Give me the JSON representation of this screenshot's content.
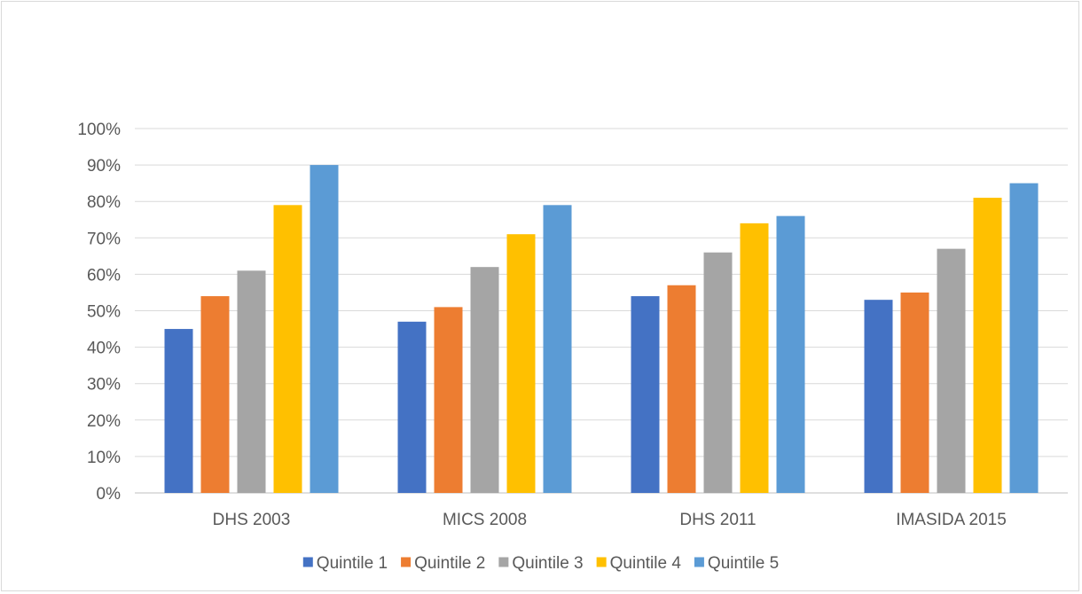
{
  "chart_data": {
    "type": "bar",
    "title": "",
    "xlabel": "",
    "ylabel": "",
    "categories": [
      "DHS 2003",
      "MICS 2008",
      "DHS 2011",
      "IMASIDA 2015"
    ],
    "series": [
      {
        "name": "Quintile 1",
        "color": "#4472c4",
        "values": [
          45,
          47,
          54,
          53
        ]
      },
      {
        "name": "Quintile 2",
        "color": "#ed7d31",
        "values": [
          54,
          51,
          57,
          55
        ]
      },
      {
        "name": "Quintile 3",
        "color": "#a5a5a5",
        "values": [
          61,
          62,
          66,
          67
        ]
      },
      {
        "name": "Quintile 4",
        "color": "#ffc000",
        "values": [
          79,
          71,
          74,
          81
        ]
      },
      {
        "name": "Quintile 5",
        "color": "#5b9bd5",
        "values": [
          90,
          79,
          76,
          85
        ]
      }
    ],
    "ylim": [
      0,
      100
    ],
    "yticks": [
      "0%",
      "10%",
      "20%",
      "30%",
      "40%",
      "50%",
      "60%",
      "70%",
      "80%",
      "90%",
      "100%"
    ],
    "grid": true,
    "legend_position": "bottom"
  }
}
